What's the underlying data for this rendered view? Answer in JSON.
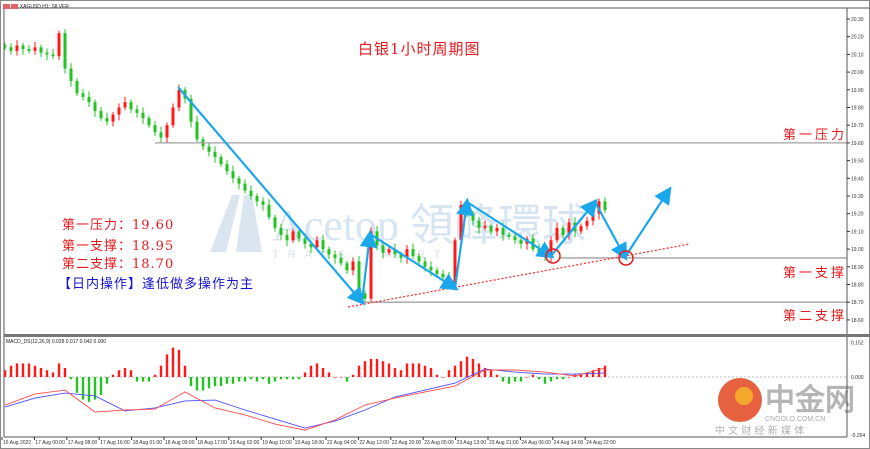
{
  "header": {
    "symbol_label": "XAGUSD,H1: SILVER"
  },
  "title": "白银1小时周期图",
  "notes": {
    "resistance1": "第一压力：19.60",
    "support1": "第一支撑：18.95",
    "support2": "第二支撑：18.70",
    "strategy_bracket": "【日内操作】",
    "strategy_text": "逢低做多操作为主"
  },
  "level_labels": {
    "resistance1": "第一压力",
    "support1": "第一支撑",
    "support2": "第二支撑"
  },
  "watermarks": {
    "acetop": "Acetop 領峰環球",
    "acetop_sub": "TRADE SMART",
    "cngold": "中金网",
    "cngold_url": "CNGOLD.COM.CN",
    "cngold_sub": "中 文 财 经 新 媒 体"
  },
  "macd_header": "MACD_DS(12,26,9) 0.028 0.017 0.042 0.000",
  "colors": {
    "bull": "#ff1a1a",
    "bear": "#22c322",
    "annotation": "#1aa7ec",
    "trendline": "#ff3333",
    "level_line": "#a0a0a0",
    "macd_main": "#ff4d4d",
    "macd_signal": "#4d4dff"
  },
  "chart_data": [
    {
      "type": "candlestick",
      "symbol": "XAGUSD",
      "timeframe": "H1",
      "ylim": [
        18.55,
        20.35
      ],
      "y_ticks": [
        "20.30",
        "20.20",
        "20.10",
        "20.00",
        "19.90",
        "19.80",
        "19.70",
        "19.60",
        "19.50",
        "19.40",
        "19.30",
        "19.20",
        "19.10",
        "19.00",
        "18.90",
        "18.80",
        "18.70",
        "18.60"
      ],
      "x_ticks": [
        "16 Aug 2022",
        "17 Aug 00:00",
        "17 Aug 08:00",
        "17 Aug 16:00",
        "18 Aug 01:00",
        "18 Aug 09:00",
        "18 Aug 17:00",
        "19 Aug 02:00",
        "19 Aug 10:00",
        "19 Aug 18:00",
        "22 Aug 04:00",
        "22 Aug 12:00",
        "22 Aug 20:00",
        "23 Aug 05:00",
        "23 Aug 13:00",
        "23 Aug 21:00",
        "24 Aug 06:00",
        "24 Aug 14:00",
        "24 Aug 22:00"
      ],
      "closes": [
        20.14,
        20.12,
        20.15,
        20.13,
        20.12,
        20.14,
        20.11,
        20.1,
        20.09,
        20.22,
        20.02,
        19.95,
        19.88,
        19.86,
        19.83,
        19.78,
        19.74,
        19.72,
        19.76,
        19.8,
        19.83,
        19.79,
        19.77,
        19.74,
        19.7,
        19.66,
        19.63,
        19.7,
        19.8,
        19.9,
        19.85,
        19.72,
        19.62,
        19.58,
        19.55,
        19.52,
        19.48,
        19.44,
        19.4,
        19.37,
        19.33,
        19.3,
        19.27,
        19.25,
        19.18,
        19.12,
        19.08,
        19.05,
        19.1,
        19.06,
        19.03,
        19.01,
        19.05,
        19.0,
        18.97,
        18.95,
        18.92,
        18.88,
        18.93,
        18.75,
        18.72,
        19.1,
        19.02,
        18.98,
        19.0,
        18.97,
        18.95,
        19.0,
        18.96,
        18.93,
        18.9,
        18.88,
        18.86,
        18.84,
        18.8,
        19.05,
        19.25,
        19.2,
        19.16,
        19.12,
        19.13,
        19.1,
        19.12,
        19.08,
        19.07,
        19.05,
        19.03,
        19.06,
        19.0,
        18.98,
        18.96,
        19.05,
        19.12,
        19.08,
        19.15,
        19.1,
        19.13,
        19.16,
        19.2,
        19.27,
        19.22
      ],
      "levels": [
        {
          "name": "resistance1",
          "value": 19.6
        },
        {
          "name": "support1",
          "value": 18.95
        },
        {
          "name": "support2",
          "value": 18.7
        }
      ]
    },
    {
      "type": "macd",
      "ylim": [
        -0.264,
        0.152
      ],
      "y_ticks": [
        "0.152",
        "0.000",
        "-0.264"
      ],
      "histogram": [
        0.03,
        0.05,
        0.06,
        0.06,
        0.06,
        0.05,
        0.04,
        0.03,
        0.02,
        0.06,
        0.04,
        -0.01,
        -0.07,
        -0.1,
        -0.11,
        -0.1,
        -0.08,
        -0.03,
        0.01,
        0.03,
        0.04,
        0.03,
        -0.02,
        -0.02,
        -0.02,
        0.01,
        0.05,
        0.1,
        0.13,
        0.12,
        0.05,
        -0.04,
        -0.06,
        -0.06,
        -0.05,
        -0.04,
        -0.04,
        -0.03,
        -0.03,
        -0.02,
        -0.02,
        -0.01,
        -0.02,
        -0.01,
        -0.03,
        -0.02,
        -0.01,
        -0.01,
        -0.01,
        -0.01,
        0.02,
        0.05,
        0.06,
        0.04,
        0.02,
        0.0,
        0.0,
        -0.02,
        0.01,
        0.05,
        0.07,
        0.08,
        0.08,
        0.07,
        0.06,
        0.04,
        0.03,
        0.06,
        0.06,
        0.06,
        0.05,
        0.04,
        0.01,
        0.0,
        0.03,
        0.05,
        0.07,
        0.09,
        0.08,
        0.06,
        0.04,
        0.03,
        0.01,
        -0.02,
        -0.03,
        -0.02,
        -0.02,
        0.0,
        0.01,
        -0.01,
        -0.03,
        -0.02,
        -0.01,
        -0.01,
        0.0,
        0.01,
        0.01,
        0.02,
        0.03,
        0.04,
        0.05
      ],
      "line_step": 5,
      "main": [
        -0.124,
        -0.075,
        -0.058,
        -0.155,
        -0.146,
        -0.142,
        -0.066,
        -0.137,
        -0.168,
        -0.208,
        -0.235,
        -0.19,
        -0.124,
        -0.093,
        -0.066,
        -0.04,
        0.031,
        0.031,
        0.022,
        0.004,
        0.04
      ],
      "signal": [
        -0.133,
        -0.093,
        -0.071,
        -0.084,
        -0.15,
        -0.137,
        -0.106,
        -0.102,
        -0.146,
        -0.186,
        -0.226,
        -0.195,
        -0.146,
        -0.088,
        -0.058,
        -0.027,
        0.035,
        0.022,
        0.013,
        0.013,
        0.018
      ]
    }
  ]
}
